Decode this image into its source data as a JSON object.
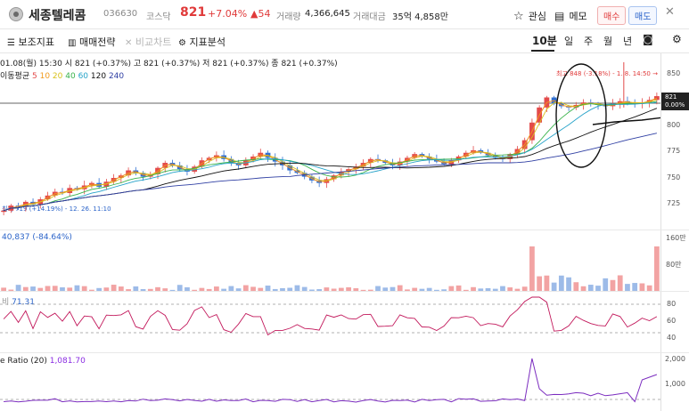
{
  "header": {
    "name": "세종텔레콤",
    "code": "036630",
    "market": "코스닥",
    "price": "821",
    "change_pct": "+7.04%",
    "change_abs": "▲54",
    "volume_label": "거래량",
    "volume": "4,366,645",
    "amount_label": "거래대금",
    "amount": "35억 4,858만",
    "fav_label": "관심",
    "memo_label": "메모",
    "buy_label": "매수",
    "sell_label": "매도"
  },
  "toolbar": {
    "aux_indicator": "보조지표",
    "trade_strategy": "매매전략",
    "compare_chart": "비교차트",
    "indicator_analysis": "지표분석",
    "periods": [
      "10분",
      "일",
      "주",
      "월",
      "년"
    ],
    "active_period": "10분"
  },
  "price_panel": {
    "ohlc": "01.08(월) 15:30  시 821 (+0.37%)  고 821 (+0.37%)  저 821 (+0.37%)  종 821 (+0.37%)",
    "ma_label": "이동평균",
    "ma_periods": [
      {
        "label": "5",
        "color": "#e34a4a"
      },
      {
        "label": "10",
        "color": "#f29a1b"
      },
      {
        "label": "20",
        "color": "#d8c11a"
      },
      {
        "label": "40",
        "color": "#38b24a"
      },
      {
        "label": "60",
        "color": "#27a3c9"
      },
      {
        "label": "120",
        "color": "#111111"
      },
      {
        "label": "240",
        "color": "#2f3fa3"
      }
    ],
    "high_note": "최고 848 (-3.18%) - 1. 8. 14:50 →",
    "low_note": "최저 719 (+14.19%) - 12. 26. 11:10",
    "current_price": "821",
    "current_pct": "0.00%",
    "y_ticks": [
      "850",
      "800",
      "775",
      "750",
      "725"
    ]
  },
  "volume_panel": {
    "label": "40,837 (-84.64%)",
    "y_ticks": [
      "160만",
      "80만"
    ]
  },
  "rsi_panel": {
    "label": "71.31",
    "y_ticks": [
      "80",
      "60",
      "40"
    ]
  },
  "ratio_panel": {
    "label": "e Ratio (20)",
    "value": "1,081.70",
    "y_ticks": [
      "2,000",
      "1,000"
    ]
  },
  "chart_data": {
    "type": "candlestick",
    "title": "",
    "ylim": [
      715,
      855
    ],
    "series": [
      {
        "name": "price",
        "values": [
          730,
          734,
          733,
          737,
          735,
          739,
          742,
          745,
          744,
          748,
          747,
          750,
          752,
          749,
          753,
          756,
          758,
          762,
          760,
          757,
          759,
          764,
          768,
          766,
          763,
          761,
          765,
          770,
          772,
          774,
          771,
          768,
          766,
          770,
          773,
          776,
          772,
          769,
          766,
          762,
          760,
          757,
          754,
          752,
          755,
          758,
          761,
          763,
          765,
          768,
          771,
          770,
          768,
          766,
          769,
          772,
          775,
          773,
          771,
          769,
          767,
          770,
          773,
          776,
          778,
          776,
          774,
          772,
          771,
          775,
          779,
          786,
          800,
          812,
          820,
          815,
          813,
          812,
          814,
          816,
          815,
          814,
          813,
          815,
          817,
          816,
          815,
          816,
          818,
          821
        ]
      }
    ]
  }
}
